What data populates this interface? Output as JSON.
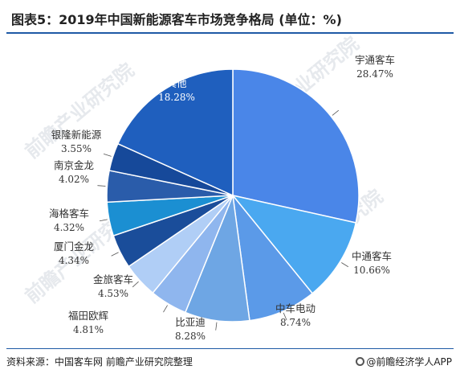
{
  "header": {
    "title": "图表5：2019年中国新能源客车市场竞争格局 (单位：%)"
  },
  "footer": {
    "source": "资料来源：中国客车网  前瞻产业研究院整理",
    "brand": "@前瞻经济学人APP"
  },
  "watermark": {
    "text": "前瞻产业研究院"
  },
  "colors": {
    "rule": "#1f5aa6",
    "slice_outline": "#ffffff",
    "leader": "#555555"
  },
  "chart_data": {
    "type": "pie",
    "start_angle_deg": 0,
    "direction": "clockwise",
    "slices": [
      {
        "label": "宇通客车",
        "value": 28.47,
        "pct_text": "28.47%",
        "color": "#4a86e8",
        "label_pos": "outside"
      },
      {
        "label": "中通客车",
        "value": 10.66,
        "pct_text": "10.66%",
        "color": "#4aa8f0",
        "label_pos": "outside"
      },
      {
        "label": "中车电动",
        "value": 8.74,
        "pct_text": "8.74%",
        "color": "#5b9ae8",
        "label_pos": "outside"
      },
      {
        "label": "比亚迪",
        "value": 8.28,
        "pct_text": "8.28%",
        "color": "#6ea6e4",
        "label_pos": "outside"
      },
      {
        "label": "福田欧辉",
        "value": 4.81,
        "pct_text": "4.81%",
        "color": "#8fb6ee",
        "label_pos": "outside"
      },
      {
        "label": "金旅客车",
        "value": 4.53,
        "pct_text": "4.53%",
        "color": "#b0cef6",
        "label_pos": "outside"
      },
      {
        "label": "厦门金龙",
        "value": 4.34,
        "pct_text": "4.34%",
        "color": "#1a4d9a",
        "label_pos": "outside"
      },
      {
        "label": "海格客车",
        "value": 4.32,
        "pct_text": "4.32%",
        "color": "#1b8fd2",
        "label_pos": "outside"
      },
      {
        "label": "南京金龙",
        "value": 4.02,
        "pct_text": "4.02%",
        "color": "#2a5caa",
        "label_pos": "outside"
      },
      {
        "label": "银隆新能源",
        "value": 3.55,
        "pct_text": "3.55%",
        "color": "#16499a",
        "label_pos": "outside"
      },
      {
        "label": "其他",
        "value": 18.28,
        "pct_text": "18.28%",
        "color": "#1f5fbe",
        "label_pos": "inside"
      }
    ]
  }
}
